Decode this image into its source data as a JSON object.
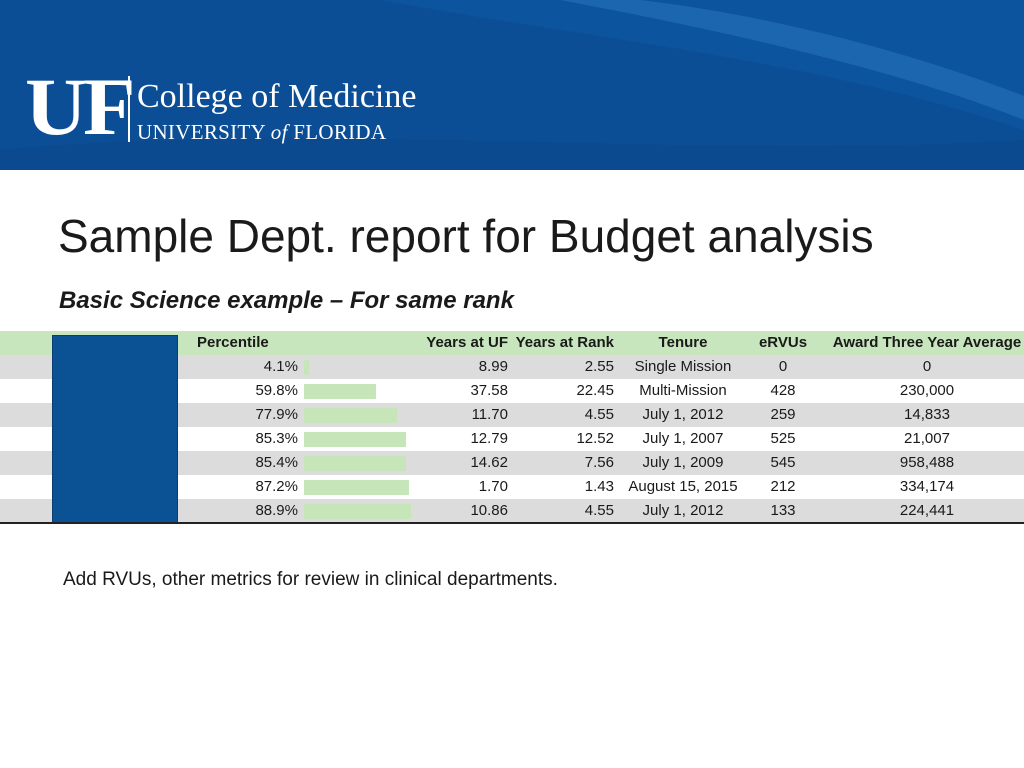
{
  "header": {
    "logo_letters": "UF",
    "college": "College of Medicine",
    "university_prefix": "UNIVERSITY ",
    "university_of": "of",
    "university_suffix": " FLORIDA"
  },
  "title": "Sample Dept. report for Budget analysis",
  "subtitle": "Basic Science example – For same rank",
  "table": {
    "headers": {
      "percentile": "Percentile",
      "years_uf": "Years at UF",
      "years_rank": "Years at Rank",
      "tenure": "Tenure",
      "ervus": "eRVUs",
      "award": "Award Three Year Average"
    },
    "rows": [
      {
        "percentile": "4.1%",
        "pct_value": 0.041,
        "years_uf": "8.99",
        "years_rank": "2.55",
        "tenure": "Single Mission",
        "ervus": "0",
        "award": "0"
      },
      {
        "percentile": "59.8%",
        "pct_value": 0.598,
        "years_uf": "37.58",
        "years_rank": "22.45",
        "tenure": "Multi-Mission",
        "ervus": "428",
        "award": "230,000"
      },
      {
        "percentile": "77.9%",
        "pct_value": 0.779,
        "years_uf": "11.70",
        "years_rank": "4.55",
        "tenure": "July 1, 2012",
        "ervus": "259",
        "award": "14,833"
      },
      {
        "percentile": "85.3%",
        "pct_value": 0.853,
        "years_uf": "12.79",
        "years_rank": "12.52",
        "tenure": "July 1, 2007",
        "ervus": "525",
        "award": "21,007"
      },
      {
        "percentile": "85.4%",
        "pct_value": 0.854,
        "years_uf": "14.62",
        "years_rank": "7.56",
        "tenure": "July 1, 2009",
        "ervus": "545",
        "award": "958,488"
      },
      {
        "percentile": "87.2%",
        "pct_value": 0.872,
        "years_uf": "1.70",
        "years_rank": "1.43",
        "tenure": "August 15, 2015",
        "ervus": "212",
        "award": "334,174"
      },
      {
        "percentile": "88.9%",
        "pct_value": 0.889,
        "years_uf": "10.86",
        "years_rank": "4.55",
        "tenure": "July 1, 2012",
        "ervus": "133",
        "award": "224,441"
      }
    ]
  },
  "note": "Add RVUs, other metrics for review in clinical departments.",
  "colors": {
    "banner": "#0c4e96",
    "header_row": "#c8e6bd",
    "data_bar": "#c6e5b8",
    "redaction": "#0b5294"
  }
}
